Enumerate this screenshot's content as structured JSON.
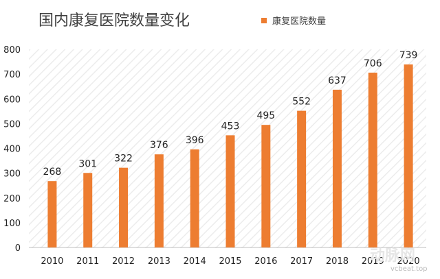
{
  "chart_data": {
    "type": "bar",
    "title": "国内康复医院数量变化",
    "categories": [
      "2010",
      "2011",
      "2012",
      "2013",
      "2014",
      "2015",
      "2016",
      "2017",
      "2018",
      "2019",
      "2020"
    ],
    "series": [
      {
        "name": "康复医院数量",
        "values": [
          268,
          301,
          322,
          376,
          396,
          453,
          495,
          552,
          637,
          706,
          739
        ],
        "color": "#ED7D31"
      }
    ],
    "xlabel": "",
    "ylabel": "",
    "ylim": [
      0,
      800
    ],
    "yticks": [
      0,
      100,
      200,
      300,
      400,
      500,
      600,
      700,
      800
    ],
    "data_labels": true,
    "legend": "top-right",
    "grid": false,
    "background_pattern": "diagonal-hatch"
  },
  "watermark": {
    "text": "动脉网",
    "url_text": "vcbeat.top"
  }
}
